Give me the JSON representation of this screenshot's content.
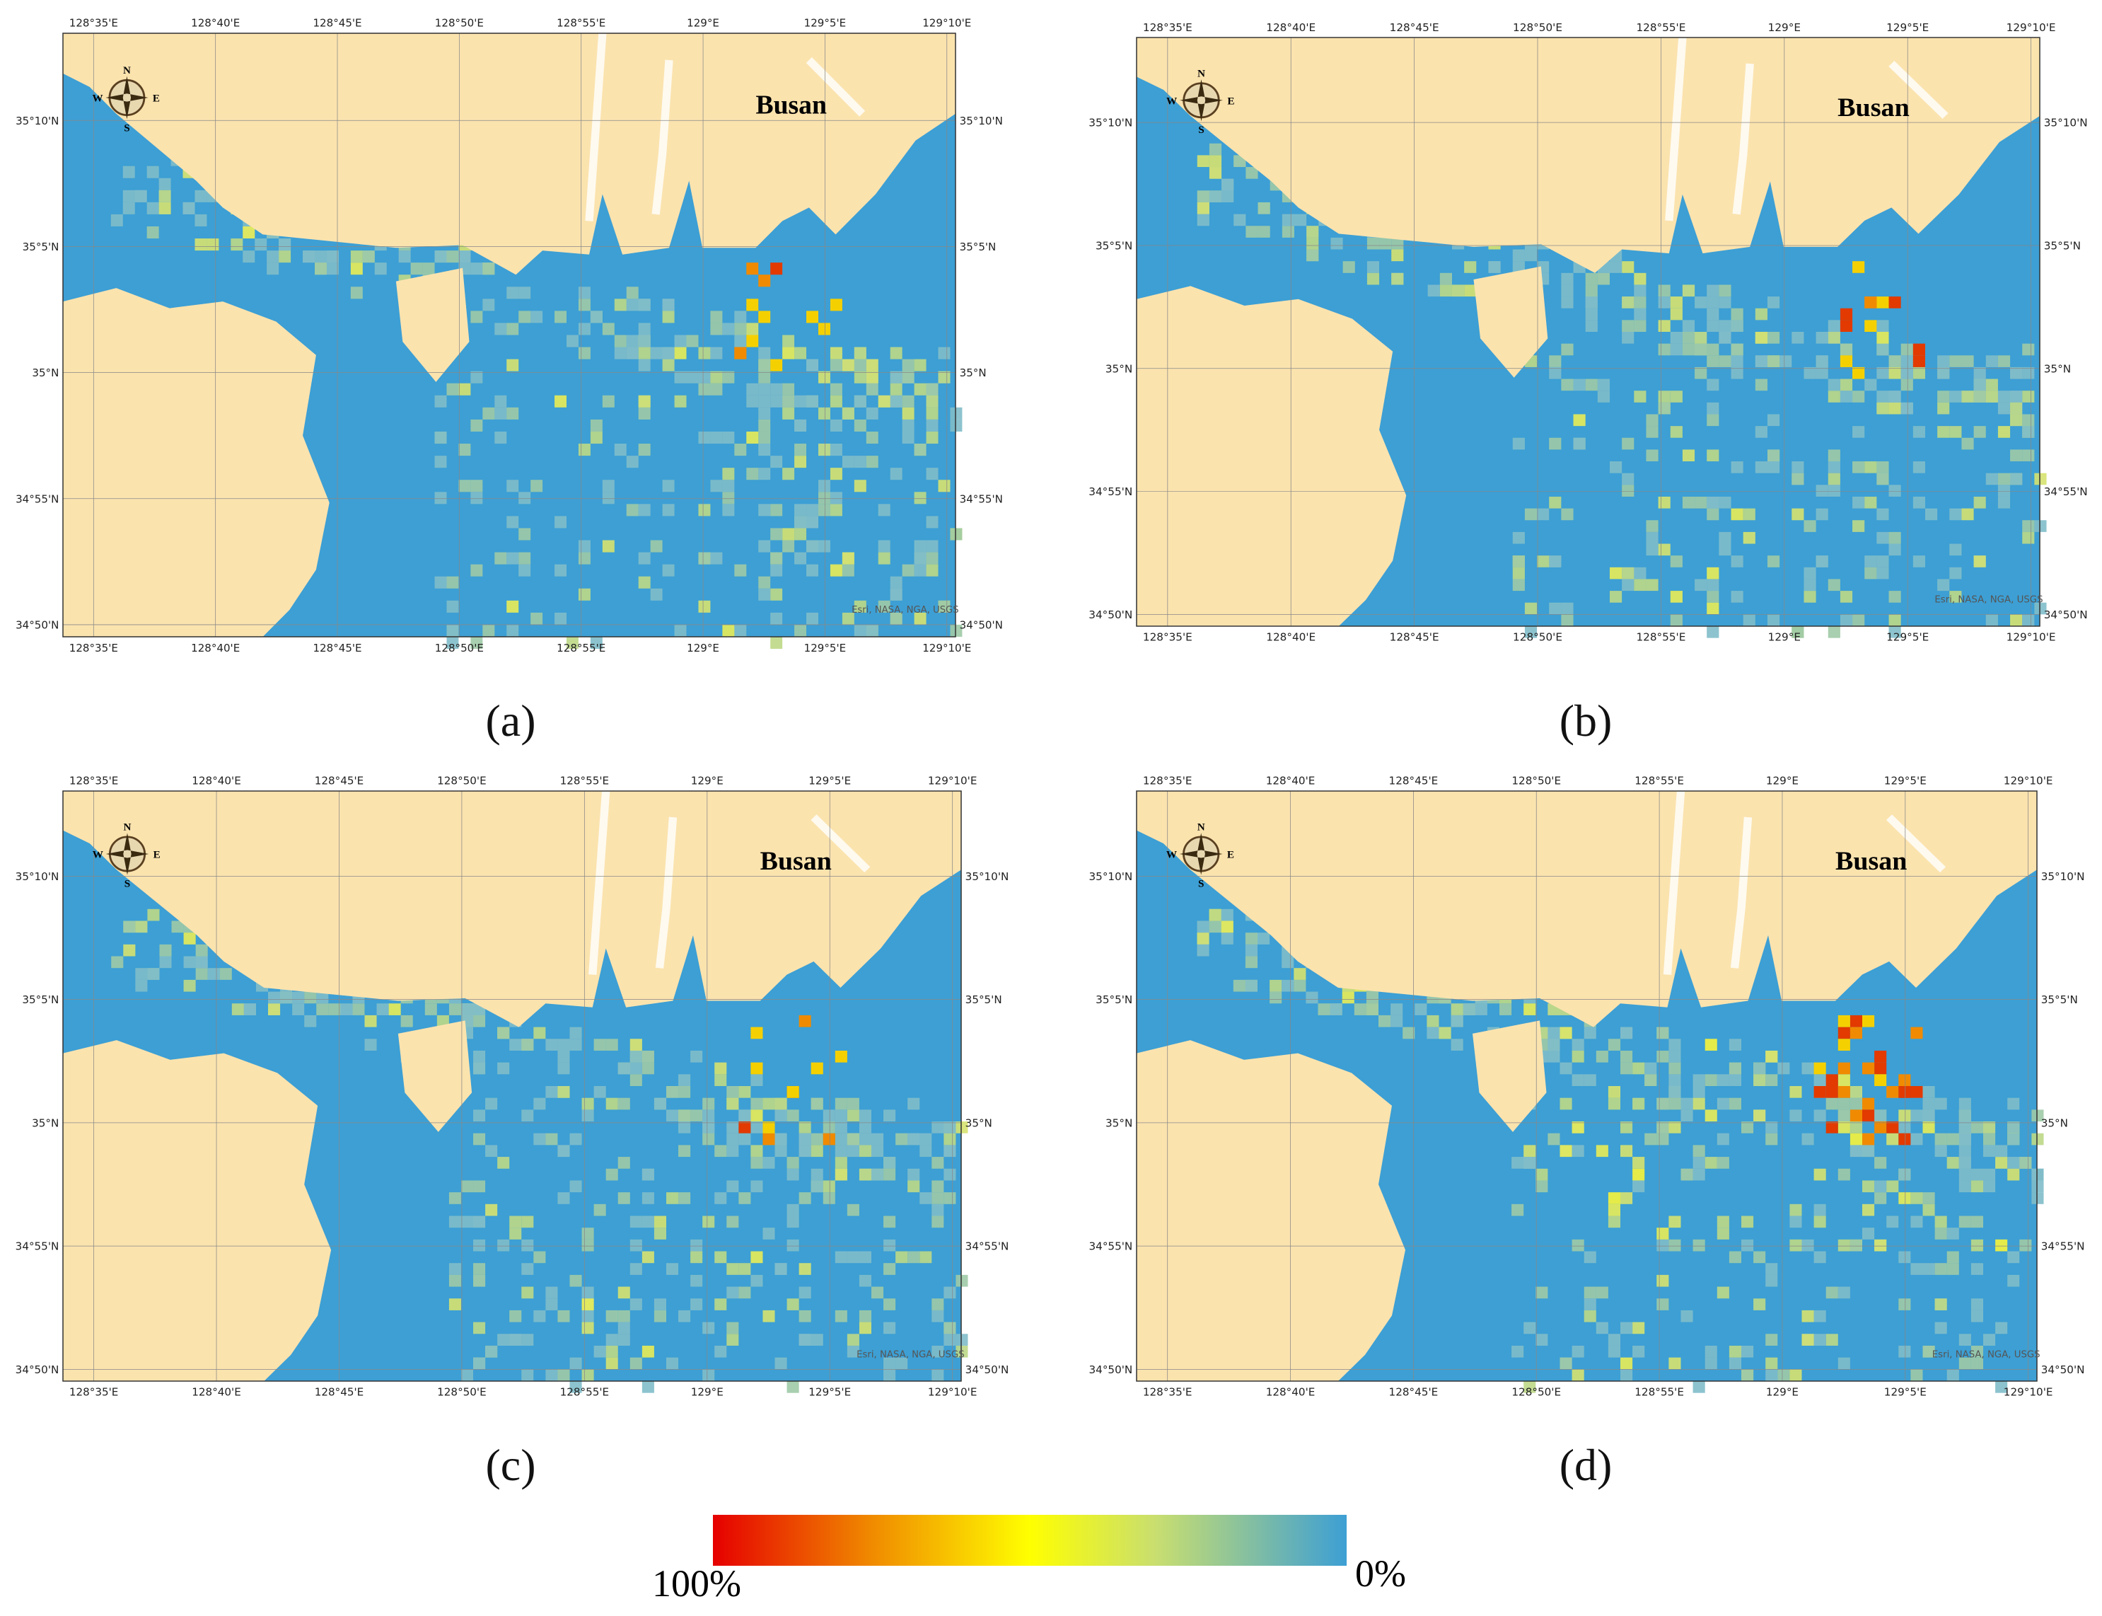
{
  "figure": {
    "panels": [
      {
        "label": "(a)"
      },
      {
        "label": "(b)"
      },
      {
        "label": "(c)"
      },
      {
        "label": "(d)"
      }
    ],
    "map_label": "Busan",
    "lon_ticks": [
      "128°35'E",
      "128°40'E",
      "128°45'E",
      "128°50'E",
      "128°55'E",
      "129°E",
      "129°5'E",
      "129°10'E"
    ],
    "lat_ticks": [
      "35°10'N",
      "35°5'N",
      "35°N",
      "34°55'N",
      "34°50'N"
    ],
    "compass": {
      "n": "N",
      "s": "S",
      "e": "E",
      "w": "W"
    },
    "attribution": "Esri, NASA, NGA, USGS",
    "legend": {
      "max_label": "100%",
      "min_label": "0%"
    }
  }
}
